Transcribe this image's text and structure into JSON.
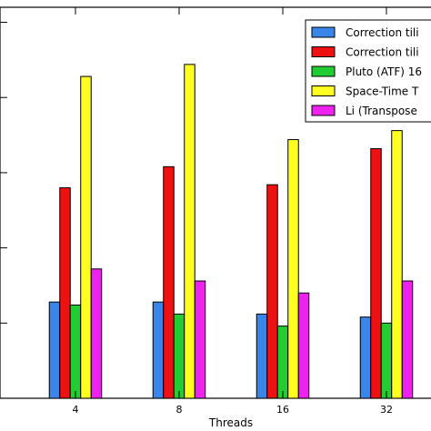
{
  "chart_data": {
    "type": "bar",
    "xlabel": "Threads",
    "ylabel": "",
    "categories": [
      "4",
      "8",
      "16",
      "32"
    ],
    "ylim": [
      0,
      1.3
    ],
    "series": [
      {
        "name": "Correction tili",
        "color": "#3a86e8",
        "values": [
          0.32,
          0.32,
          0.28,
          0.27
        ]
      },
      {
        "name": "Correction tili",
        "color": "#ee1111",
        "values": [
          0.7,
          0.77,
          0.71,
          0.83
        ]
      },
      {
        "name": "Pluto (ATF) 16",
        "color": "#22cc33",
        "values": [
          0.31,
          0.28,
          0.24,
          0.25
        ]
      },
      {
        "name": "Space-Time T",
        "color": "#ffff22",
        "values": [
          1.07,
          1.11,
          0.86,
          0.89
        ]
      },
      {
        "name": "Li (Transpose",
        "color": "#ee22ee",
        "values": [
          0.43,
          0.39,
          0.35,
          0.39
        ]
      }
    ],
    "grid": false,
    "legend_position": "top-right"
  }
}
